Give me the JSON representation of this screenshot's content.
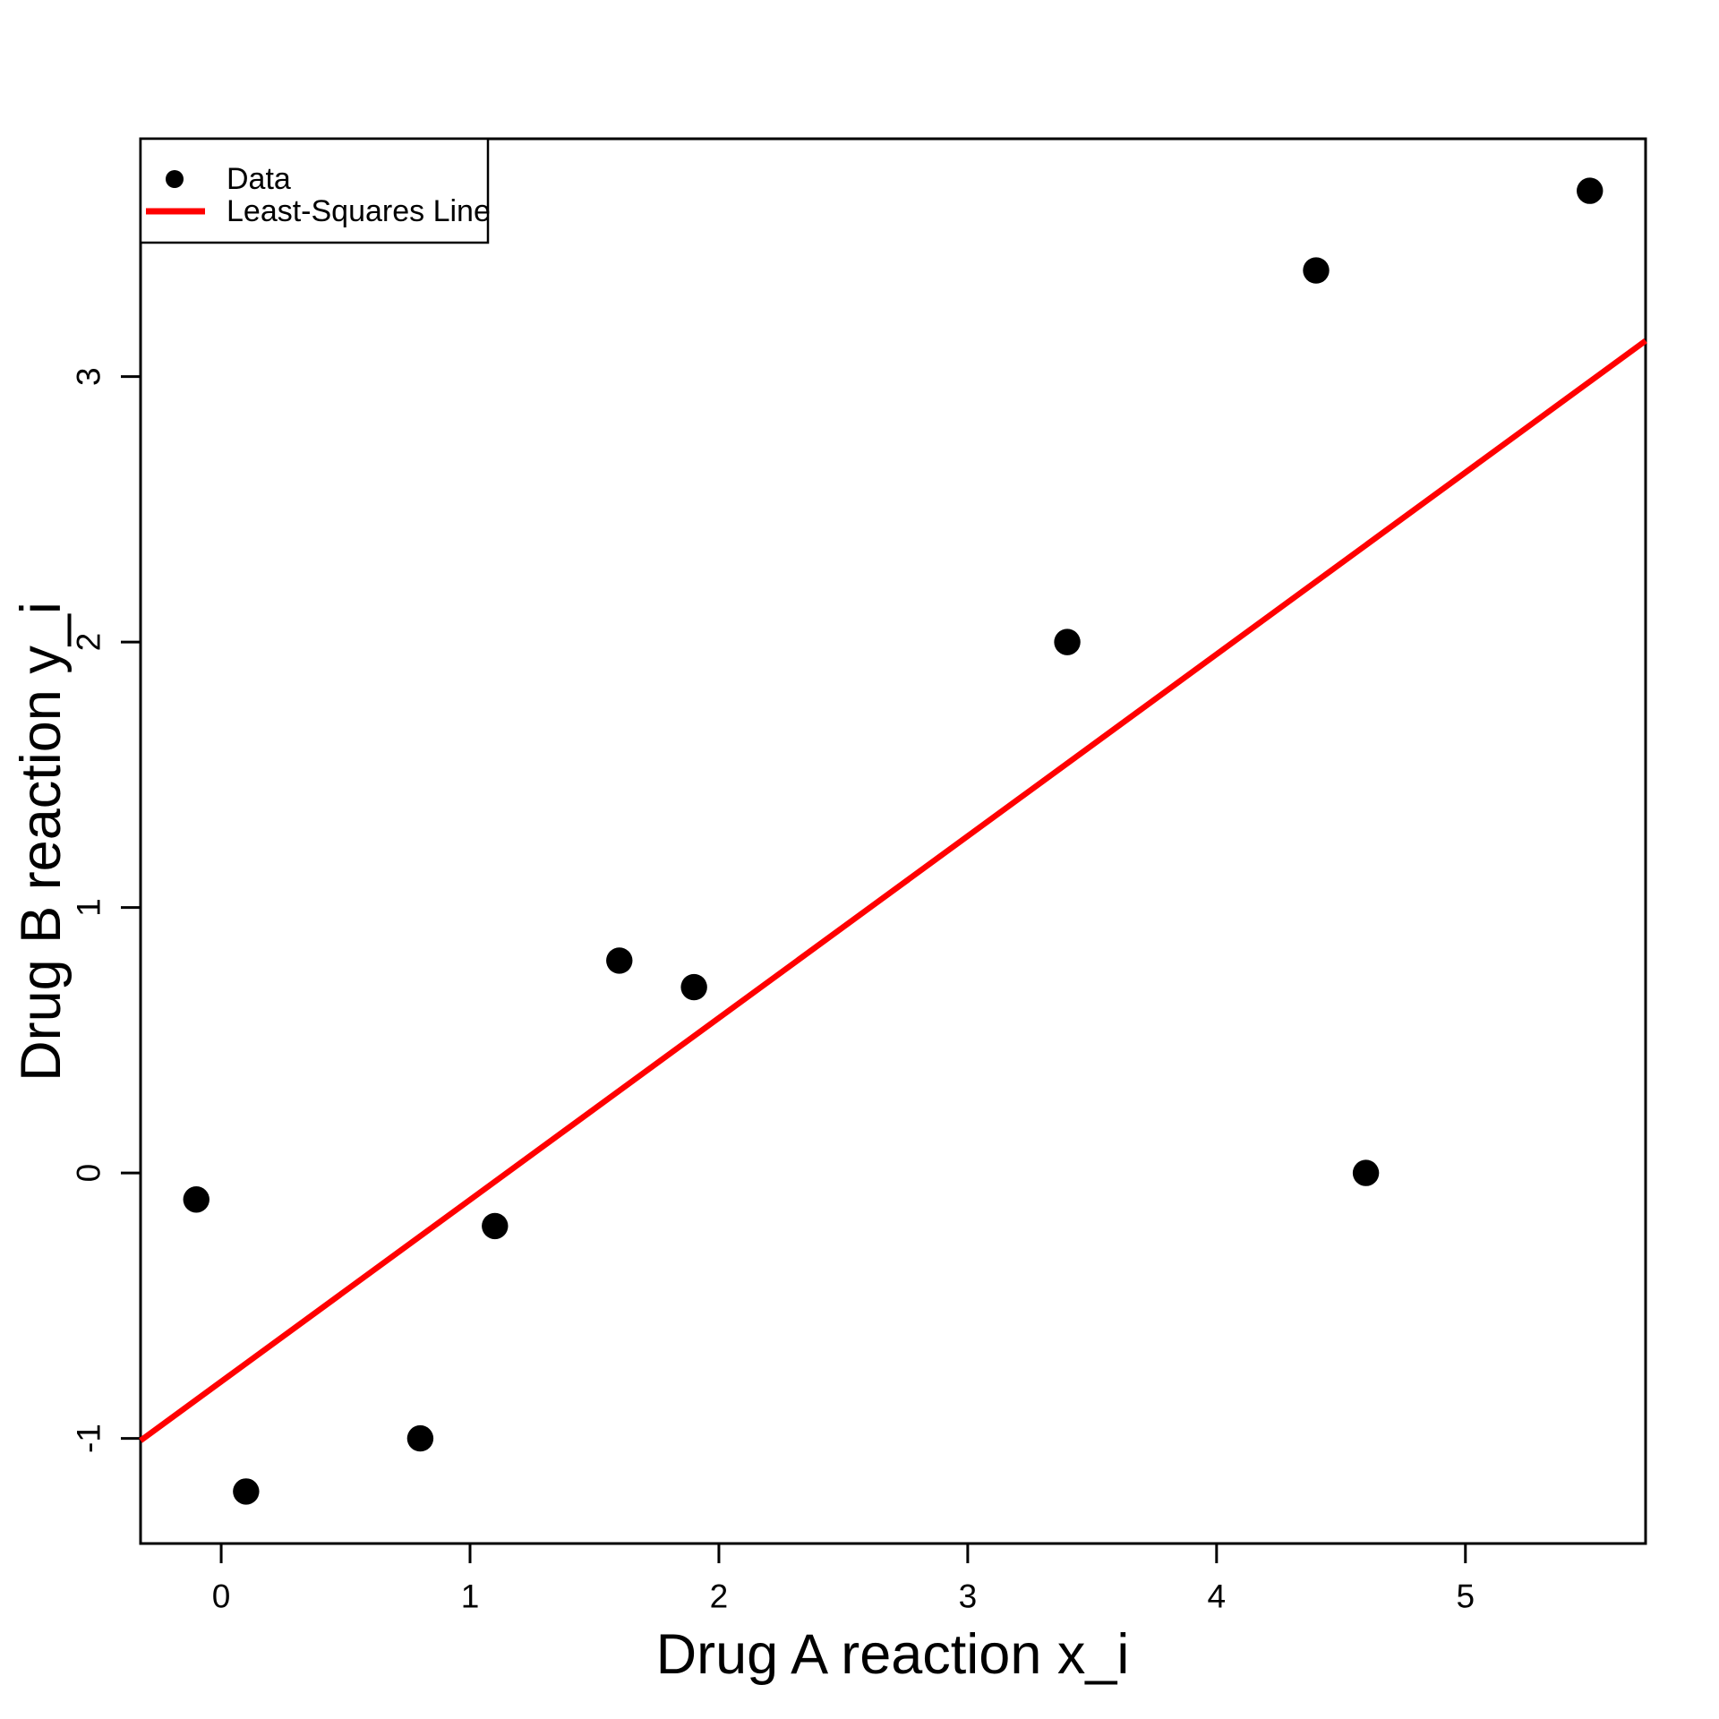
{
  "chart_data": {
    "type": "scatter",
    "title": "",
    "xlabel": "Drug A reaction x_i",
    "ylabel": "Drug B reaction y_i",
    "points": [
      {
        "x": -0.1,
        "y": -0.1
      },
      {
        "x": 0.1,
        "y": -1.2
      },
      {
        "x": 0.8,
        "y": -1.0
      },
      {
        "x": 1.1,
        "y": -0.2
      },
      {
        "x": 1.6,
        "y": 0.8
      },
      {
        "x": 1.9,
        "y": 0.7
      },
      {
        "x": 3.4,
        "y": 2.0
      },
      {
        "x": 4.4,
        "y": 3.4
      },
      {
        "x": 4.6,
        "y": 0.0
      },
      {
        "x": 5.5,
        "y": 3.7
      }
    ],
    "regression_line": {
      "slope": 0.685,
      "intercept": -0.786
    },
    "x_ticks": [
      "0",
      "1",
      "2",
      "3",
      "4",
      "5"
    ],
    "x_tick_values": [
      0,
      1,
      2,
      3,
      4,
      5
    ],
    "y_ticks": [
      "-1",
      "0",
      "1",
      "2",
      "3"
    ],
    "y_tick_values": [
      -1,
      0,
      1,
      2,
      3
    ],
    "xlim": [
      -0.324,
      5.724
    ],
    "ylim": [
      -1.396,
      3.896
    ],
    "grid": false,
    "legend": {
      "position": "top-left",
      "items": [
        {
          "label": "Data",
          "marker": "point",
          "color": "#000000"
        },
        {
          "label": "Least-Squares Line",
          "marker": "line",
          "color": "#FF0000"
        }
      ]
    },
    "colors": {
      "points": "#000000",
      "line": "#FF0000",
      "frame": "#000000",
      "background": "#FFFFFF"
    }
  }
}
